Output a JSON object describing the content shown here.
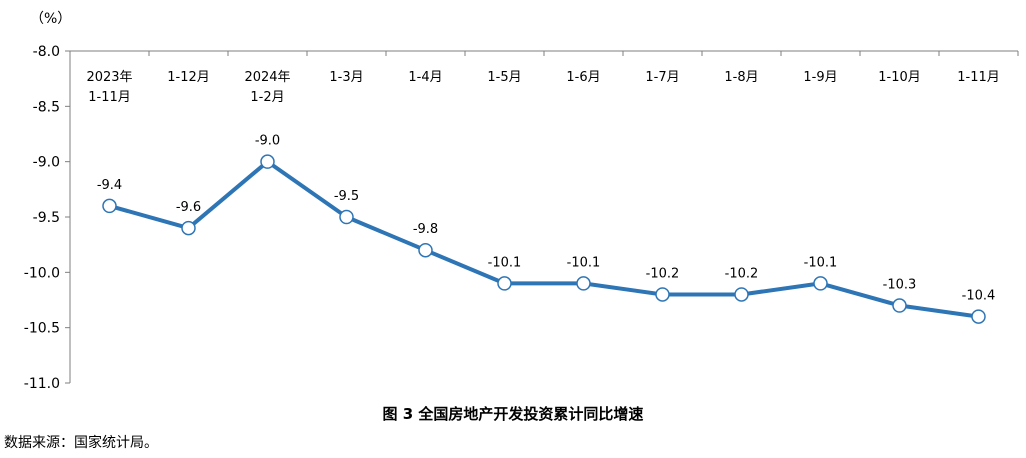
{
  "unit_label": "（%）",
  "caption": "图 3 全国房地产开发投资累计同比增速",
  "source": "数据来源：国家统计局。",
  "colors": {
    "line": "#2E75B6",
    "axis": "#7F7F7F",
    "marker_fill": "#FFFFFF"
  },
  "chart_data": {
    "type": "line",
    "title": "图 3 全国房地产开发投资累计同比增速",
    "ylabel": "（%）",
    "xlabel": "",
    "categories": [
      "2023年 1-11月",
      "1-12月",
      "2024年 1-2月",
      "1-3月",
      "1-4月",
      "1-5月",
      "1-6月",
      "1-7月",
      "1-8月",
      "1-9月",
      "1-10月",
      "1-11月"
    ],
    "category_lines": [
      [
        "2023年",
        "1-11月"
      ],
      [
        "1-12月"
      ],
      [
        "2024年",
        "1-2月"
      ],
      [
        "1-3月"
      ],
      [
        "1-4月"
      ],
      [
        "1-5月"
      ],
      [
        "1-6月"
      ],
      [
        "1-7月"
      ],
      [
        "1-8月"
      ],
      [
        "1-9月"
      ],
      [
        "1-10月"
      ],
      [
        "1-11月"
      ]
    ],
    "series": [
      {
        "values": [
          -9.4,
          -9.6,
          -9.0,
          -9.5,
          -9.8,
          -10.1,
          -10.1,
          -10.2,
          -10.2,
          -10.1,
          -10.3,
          -10.4
        ]
      }
    ],
    "data_labels": [
      "-9.4",
      "-9.6",
      "-9.0",
      "-9.5",
      "-9.8",
      "-10.1",
      "-10.1",
      "-10.2",
      "-10.2",
      "-10.1",
      "-10.3",
      "-10.4"
    ],
    "ylim": [
      -11.0,
      -8.0
    ],
    "yticks": [
      -8.0,
      -8.5,
      -9.0,
      -9.5,
      -10.0,
      -10.5,
      -11.0
    ],
    "ytick_labels": [
      "-8.0",
      "-8.5",
      "-9.0",
      "-9.5",
      "-10.0",
      "-10.5",
      "-11.0"
    ],
    "x_axis_position": "top",
    "grid": false,
    "legend": false
  }
}
